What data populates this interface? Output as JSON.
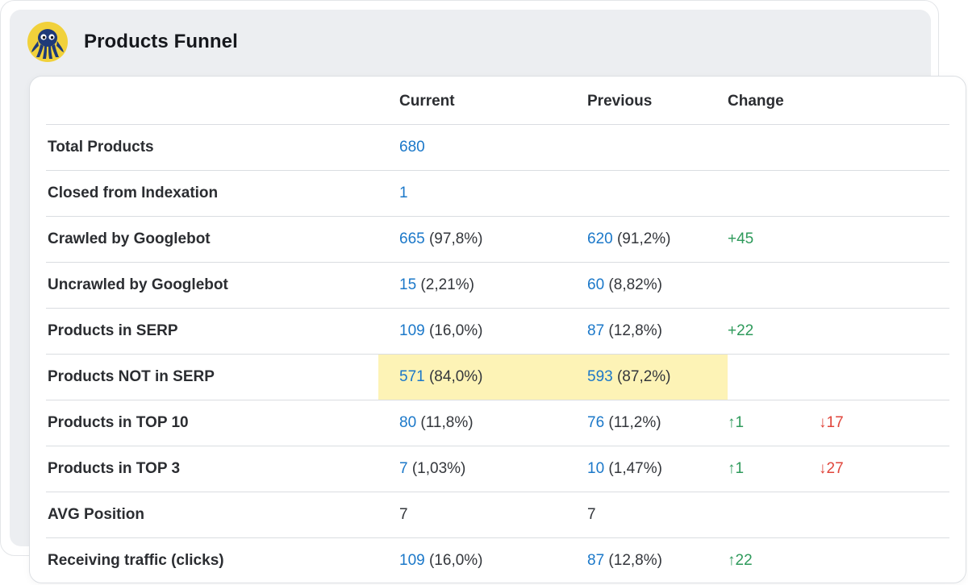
{
  "title": "Products Funnel",
  "colors": {
    "link_blue": "#1b78c9",
    "positive_green": "#2e9a5b",
    "negative_red": "#e0453b",
    "highlight_yellow": "#fdf3b6",
    "logo_yellow": "#f1d13b",
    "logo_navy": "#1f3a78"
  },
  "logo_icon": "octopus-logo-icon",
  "table": {
    "headers": {
      "label": "",
      "current": "Current",
      "previous": "Previous",
      "change": "Change"
    },
    "rows": [
      {
        "label": "Total Products",
        "current_value": "680",
        "current_pct": "",
        "previous_value": "",
        "previous_pct": "",
        "change_up": "",
        "change_down": "",
        "highlight": false
      },
      {
        "label": "Closed from Indexation",
        "current_value": "1",
        "current_pct": "",
        "previous_value": "",
        "previous_pct": "",
        "change_up": "",
        "change_down": "",
        "highlight": false
      },
      {
        "label": "Crawled by Googlebot",
        "current_value": "665",
        "current_pct": "(97,8%)",
        "previous_value": "620",
        "previous_pct": "(91,2%)",
        "change_up": "+45",
        "change_down": "",
        "highlight": false
      },
      {
        "label": "Uncrawled by Googlebot",
        "current_value": "15",
        "current_pct": "(2,21%)",
        "previous_value": "60",
        "previous_pct": "(8,82%)",
        "change_up": "",
        "change_down": "",
        "highlight": false
      },
      {
        "label": "Products in SERP",
        "current_value": "109",
        "current_pct": "(16,0%)",
        "previous_value": "87",
        "previous_pct": "(12,8%)",
        "change_up": "+22",
        "change_down": "",
        "highlight": false
      },
      {
        "label": "Products NOT in SERP",
        "current_value": "571",
        "current_pct": "(84,0%)",
        "previous_value": "593",
        "previous_pct": "(87,2%)",
        "change_up": "",
        "change_down": "",
        "highlight": true
      },
      {
        "label": "Products in TOP 10",
        "current_value": "80",
        "current_pct": "(11,8%)",
        "previous_value": "76",
        "previous_pct": "(11,2%)",
        "change_up": "↑1",
        "change_down": "↓17",
        "highlight": false
      },
      {
        "label": "Products in TOP 3",
        "current_value": "7",
        "current_pct": "(1,03%)",
        "previous_value": "10",
        "previous_pct": "(1,47%)",
        "change_up": "↑1",
        "change_down": "↓27",
        "highlight": false
      },
      {
        "label": "AVG Position",
        "current_value": "7",
        "current_pct": "",
        "previous_value": "7",
        "previous_pct": "",
        "change_up": "",
        "change_down": "",
        "highlight": false,
        "plain_values": true
      },
      {
        "label": "Receiving traffic (clicks)",
        "current_value": "109",
        "current_pct": "(16,0%)",
        "previous_value": "87",
        "previous_pct": "(12,8%)",
        "change_up": "↑22",
        "change_down": "",
        "highlight": false
      }
    ]
  }
}
